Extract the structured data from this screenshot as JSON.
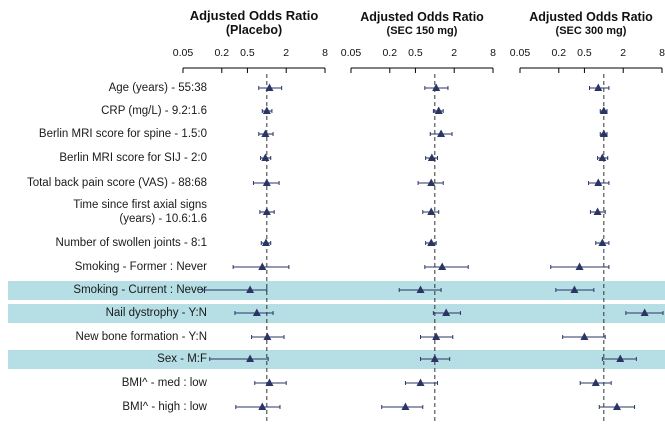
{
  "colors": {
    "marker": "#2a3565",
    "highlight": "#b6dee5",
    "axis": "#000000",
    "text": "#1a1a1a"
  },
  "chart_data": [
    {
      "type": "forest",
      "title_line1": "Adjusted Odds Ratio",
      "title_line2": "(Placebo)",
      "xscale": "log2",
      "xlim": [
        0.05,
        8
      ],
      "xticks": [
        "0.05",
        "0.2",
        "0.5",
        "2",
        "8"
      ],
      "reference_line": 1,
      "rows": [
        {
          "label": "Age (years) - 55:38",
          "or": 1.1,
          "lo": 0.75,
          "hi": 1.7
        },
        {
          "label": "CRP (mg/L) - 9.2:1.6",
          "or": 1.0,
          "lo": 0.85,
          "hi": 1.2
        },
        {
          "label": "Berlin MRI score for spine - 1.5:0",
          "or": 0.95,
          "lo": 0.75,
          "hi": 1.25
        },
        {
          "label": "Berlin MRI score for SIJ - 2:0",
          "or": 0.95,
          "lo": 0.8,
          "hi": 1.15
        },
        {
          "label": "Total back pain score (VAS) - 88:68",
          "or": 1.0,
          "lo": 0.62,
          "hi": 1.55
        },
        {
          "label": "Time since first axial signs\n(years) - 10.6:1.6",
          "or": 1.0,
          "lo": 0.78,
          "hi": 1.3
        },
        {
          "label": "Number of swollen joints - 8:1",
          "or": 0.97,
          "lo": 0.82,
          "hi": 1.15
        },
        {
          "label": "Smoking - Former : Never",
          "or": 0.85,
          "lo": 0.3,
          "hi": 2.2
        },
        {
          "label": "Smoking - Current : Never",
          "or": 0.55,
          "lo": 0.1,
          "hi": 1.0
        },
        {
          "label": "Nail dystrophy - Y:N",
          "or": 0.7,
          "lo": 0.32,
          "hi": 1.25
        },
        {
          "label": "New bone formation - Y:N",
          "or": 1.02,
          "lo": 0.58,
          "hi": 1.85
        },
        {
          "label": "Sex - M:F",
          "or": 0.55,
          "lo": 0.13,
          "hi": 1.05
        },
        {
          "label": "BMI^ - med : low",
          "or": 1.1,
          "lo": 0.65,
          "hi": 2.0
        },
        {
          "label": "BMI^ - high : low",
          "or": 0.85,
          "lo": 0.33,
          "hi": 1.6
        }
      ]
    },
    {
      "type": "forest",
      "title_line1": "Adjusted Odds Ratio",
      "title_line2": "(SEC 150 mg)",
      "xscale": "log2",
      "xlim": [
        0.05,
        8
      ],
      "xticks": [
        "0.05",
        "0.2",
        "0.5",
        "2",
        "8"
      ],
      "reference_line": 1,
      "rows": [
        {
          "or": 1.05,
          "lo": 0.7,
          "hi": 1.6
        },
        {
          "or": 1.15,
          "lo": 0.95,
          "hi": 1.35
        },
        {
          "or": 1.25,
          "lo": 0.85,
          "hi": 1.85
        },
        {
          "or": 0.9,
          "lo": 0.72,
          "hi": 1.1
        },
        {
          "or": 0.88,
          "lo": 0.55,
          "hi": 1.35
        },
        {
          "or": 0.88,
          "lo": 0.65,
          "hi": 1.15
        },
        {
          "or": 0.88,
          "lo": 0.72,
          "hi": 1.05
        },
        {
          "or": 1.3,
          "lo": 0.7,
          "hi": 3.3
        },
        {
          "or": 0.6,
          "lo": 0.28,
          "hi": 1.25
        },
        {
          "or": 1.5,
          "lo": 0.95,
          "hi": 2.5
        },
        {
          "or": 1.05,
          "lo": 0.6,
          "hi": 1.9
        },
        {
          "or": 1.0,
          "lo": 0.6,
          "hi": 1.7
        },
        {
          "or": 0.6,
          "lo": 0.35,
          "hi": 1.1
        },
        {
          "or": 0.35,
          "lo": 0.15,
          "hi": 0.65
        }
      ]
    },
    {
      "type": "forest",
      "title_line1": "Adjusted Odds Ratio",
      "title_line2": "(SEC 300 mg)",
      "xscale": "log2",
      "xlim": [
        0.05,
        8
      ],
      "xticks": [
        "0.05",
        "0.2",
        "0.5",
        "2",
        "8"
      ],
      "reference_line": 1,
      "rows": [
        {
          "or": 0.82,
          "lo": 0.6,
          "hi": 1.2
        },
        {
          "or": 1.0,
          "lo": 0.88,
          "hi": 1.12
        },
        {
          "or": 1.0,
          "lo": 0.88,
          "hi": 1.12
        },
        {
          "or": 0.95,
          "lo": 0.8,
          "hi": 1.15
        },
        {
          "or": 0.82,
          "lo": 0.58,
          "hi": 1.2
        },
        {
          "or": 0.8,
          "lo": 0.62,
          "hi": 1.05
        },
        {
          "or": 0.95,
          "lo": 0.75,
          "hi": 1.2
        },
        {
          "or": 0.42,
          "lo": 0.15,
          "hi": 1.2
        },
        {
          "or": 0.35,
          "lo": 0.18,
          "hi": 0.7
        },
        {
          "or": 4.3,
          "lo": 2.2,
          "hi": 8.3
        },
        {
          "or": 0.5,
          "lo": 0.23,
          "hi": 1.05
        },
        {
          "or": 1.8,
          "lo": 0.95,
          "hi": 3.2
        },
        {
          "or": 0.75,
          "lo": 0.43,
          "hi": 1.3
        },
        {
          "or": 1.6,
          "lo": 0.85,
          "hi": 3.0
        }
      ]
    }
  ],
  "highlighted_rows": [
    8,
    9,
    11
  ]
}
